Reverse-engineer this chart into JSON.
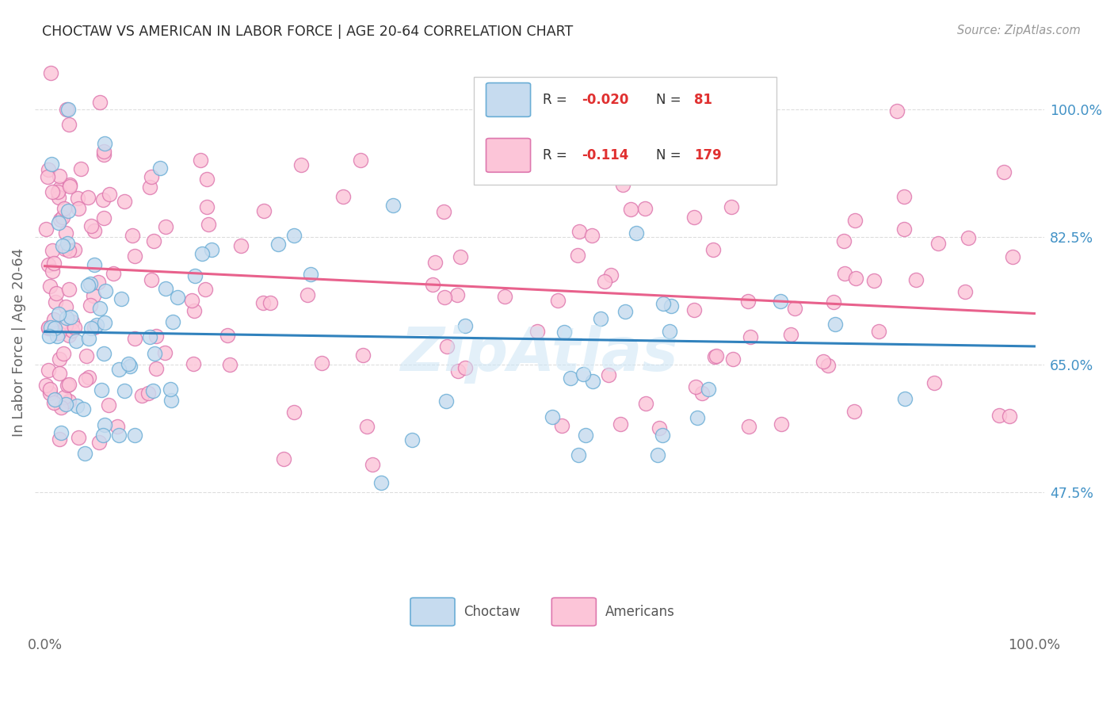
{
  "title": "CHOCTAW VS AMERICAN IN LABOR FORCE | AGE 20-64 CORRELATION CHART",
  "source": "Source: ZipAtlas.com",
  "ylabel": "In Labor Force | Age 20-64",
  "ytick_labels": [
    "47.5%",
    "65.0%",
    "82.5%",
    "100.0%"
  ],
  "ytick_values": [
    0.475,
    0.65,
    0.825,
    1.0
  ],
  "xlim": [
    0.0,
    1.0
  ],
  "ylim": [
    0.28,
    1.08
  ],
  "legend_choctaw_R": "-0.020",
  "legend_choctaw_N": "81",
  "legend_american_R": "-0.114",
  "legend_american_N": "179",
  "choctaw_edge_color": "#6baed6",
  "choctaw_face_color": "#c6dbef",
  "american_edge_color": "#de77ae",
  "american_face_color": "#fcc5d8",
  "choctaw_line_color": "#3182bd",
  "american_line_color": "#e8618c",
  "choctaw_line_y0": 0.695,
  "choctaw_line_y1": 0.675,
  "american_line_y0": 0.785,
  "american_line_y1": 0.72,
  "grid_color": "#dddddd",
  "bg_color": "#ffffff",
  "title_color": "#2c2c2c",
  "source_color": "#999999",
  "right_tick_color": "#4292c6",
  "scatter_size": 170,
  "scatter_alpha": 0.82,
  "watermark_text": "ZipAtlas",
  "watermark_color": "#cce5f5",
  "watermark_alpha": 0.55,
  "watermark_fontsize": 55
}
